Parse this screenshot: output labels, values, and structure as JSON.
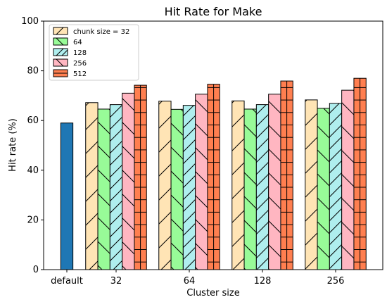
{
  "chart_data": {
    "type": "bar",
    "title": "Hit Rate for Make",
    "xlabel": "Cluster size",
    "ylabel": "Hit rate (%)",
    "ylim": [
      0,
      100
    ],
    "yticks": [
      0,
      20,
      40,
      60,
      80,
      100
    ],
    "grid": false,
    "legend_position": "top-left",
    "default_bar": {
      "label": "default",
      "value": 59,
      "color": "#1f77b4"
    },
    "categories": [
      "32",
      "64",
      "128",
      "256"
    ],
    "series": [
      {
        "name": "chunk size = 32",
        "color": "#ffe4b5",
        "hatch": "diag-fwd",
        "values": [
          67.2,
          67.8,
          67.9,
          68.3
        ]
      },
      {
        "name": "64",
        "color": "#98fb98",
        "hatch": "diag-back",
        "values": [
          64.6,
          64.5,
          64.6,
          64.9
        ]
      },
      {
        "name": "128",
        "color": "#afeeee",
        "hatch": "diag-fwd-dense",
        "values": [
          66.4,
          66.1,
          66.4,
          66.9
        ]
      },
      {
        "name": "256",
        "color": "#ffb6c1",
        "hatch": "diag-back",
        "values": [
          71.0,
          70.6,
          70.6,
          72.2
        ]
      },
      {
        "name": "512",
        "color": "#ff7f50",
        "hatch": "grid",
        "values": [
          74.2,
          74.6,
          75.9,
          77.0
        ]
      }
    ]
  }
}
